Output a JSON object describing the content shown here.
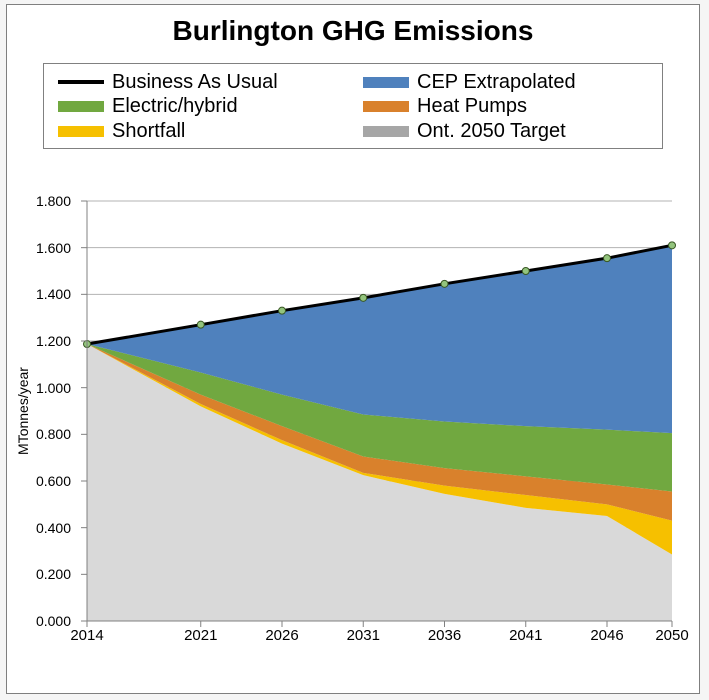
{
  "chart": {
    "type": "area",
    "title": "Burlington GHG Emissions",
    "title_fontsize": 28,
    "title_fontweight": "bold",
    "background_color": "#ffffff",
    "frame_border_color": "#7f7f7f",
    "y_axis_label": "MTonnes/year",
    "y_axis_label_fontsize": 14,
    "tick_fontsize": 14,
    "xlim": [
      2014,
      2050
    ],
    "ylim": [
      0.0,
      1.8
    ],
    "y_ticks": [
      0.0,
      0.2,
      0.4,
      0.6,
      0.8,
      1.0,
      1.2,
      1.4,
      1.6,
      1.8
    ],
    "y_tick_labels": [
      "0.000",
      "0.200",
      "0.400",
      "0.600",
      "0.800",
      "1.000",
      "1.200",
      "1.400",
      "1.600",
      "1.800"
    ],
    "x_ticks": [
      2014,
      2021,
      2026,
      2031,
      2036,
      2041,
      2046,
      2050
    ],
    "x_tick_labels": [
      "2014",
      "2021",
      "2026",
      "2031",
      "2036",
      "2041",
      "2046",
      "2050"
    ],
    "series_x": [
      2014,
      2021,
      2026,
      2031,
      2036,
      2041,
      2046,
      2050
    ],
    "legend": {
      "border_color": "#808080",
      "fontsize": 20,
      "items": [
        {
          "label": "Business As Usual",
          "color": "#000000",
          "kind": "line"
        },
        {
          "label": "CEP Extrapolated",
          "color": "#4f81bd",
          "kind": "area"
        },
        {
          "label": "Electric/hybrid",
          "color": "#71a840",
          "kind": "area"
        },
        {
          "label": "Heat Pumps",
          "color": "#d9812c",
          "kind": "area"
        },
        {
          "label": "Shortfall",
          "color": "#f6c000",
          "kind": "area"
        },
        {
          "label": "Ont. 2050 Target",
          "color": "#a6a6a6",
          "kind": "area"
        }
      ]
    },
    "layers": [
      {
        "name": "Ont. 2050 Target",
        "color": "#d9d9d9",
        "values": [
          1.187,
          0.92,
          0.76,
          0.625,
          0.545,
          0.485,
          0.45,
          0.285
        ]
      },
      {
        "name": "Shortfall",
        "color": "#f6c000",
        "values": [
          1.187,
          0.93,
          0.775,
          0.635,
          0.58,
          0.54,
          0.5,
          0.43
        ]
      },
      {
        "name": "Heat Pumps",
        "color": "#d9812c",
        "values": [
          1.187,
          0.97,
          0.835,
          0.705,
          0.655,
          0.62,
          0.585,
          0.555
        ]
      },
      {
        "name": "Electric/hybrid",
        "color": "#71a840",
        "values": [
          1.187,
          1.065,
          0.97,
          0.885,
          0.855,
          0.835,
          0.82,
          0.805
        ]
      },
      {
        "name": "CEP Extrapolated",
        "color": "#4f81bd",
        "values": [
          1.187,
          1.27,
          1.33,
          1.385,
          1.445,
          1.5,
          1.555,
          1.61
        ]
      }
    ],
    "top_line": {
      "name": "Business As Usual",
      "color": "#000000",
      "line_width": 3,
      "marker_fill": "#93c47d",
      "marker_stroke": "#385723",
      "marker_radius": 3.5,
      "values": [
        1.187,
        1.27,
        1.33,
        1.385,
        1.445,
        1.5,
        1.555,
        1.61
      ]
    },
    "gridline_color": "#b3b3b3",
    "axis_line_color": "#808080"
  }
}
